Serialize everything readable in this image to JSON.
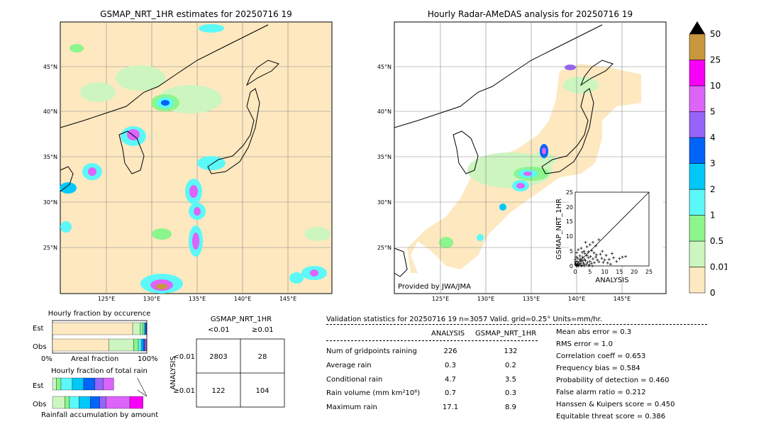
{
  "left_map": {
    "title": "GSMAP_NRT_1HR estimates for 20250716 19"
  },
  "right_map": {
    "title": "Hourly Radar-AMeDAS analysis for 20250716 19",
    "credit": "Provided by JWA/JMA"
  },
  "map_axes": {
    "lat_labels": [
      "45°N",
      "40°N",
      "35°N",
      "30°N",
      "25°N"
    ],
    "lon_labels": [
      "125°E",
      "130°E",
      "135°E",
      "140°E",
      "145°E"
    ]
  },
  "colorbar": {
    "levels": [
      "0",
      "0.01",
      "0.5",
      "1",
      "2",
      "3",
      "4",
      "5",
      "10",
      "25",
      "50"
    ],
    "colors": [
      "#fde8c0",
      "#ccf5c0",
      "#8cf58c",
      "#5cf8f8",
      "#00c8f8",
      "#0064f8",
      "#9664f8",
      "#dc64f8",
      "#f800f8",
      "#c8963c",
      "#000000"
    ]
  },
  "scatter": {
    "xlabel": "ANALYSIS",
    "ylabel": "GSMAP_NRT_1HR",
    "ticks": [
      "0",
      "5",
      "10",
      "15",
      "20",
      "25"
    ]
  },
  "fraction_occurrence": {
    "title": "Hourly fraction by occurence",
    "rows": [
      "Est",
      "Obs"
    ],
    "x0": "0%",
    "xlabel": "Areal fraction",
    "x1": "100%"
  },
  "fraction_total": {
    "title": "Hourly fraction of total rain",
    "rows": [
      "Est",
      "Obs"
    ],
    "xlabel": "Rainfall accumulation by amount"
  },
  "contingency": {
    "title": "GSMAP_NRT_1HR",
    "col_labels": [
      "<0.01",
      "≥0.01"
    ],
    "row_axis": "ANALYSIS",
    "row_labels": [
      "<0.01",
      "≥0.01"
    ],
    "cells": [
      [
        "2803",
        "28"
      ],
      [
        "122",
        "104"
      ]
    ]
  },
  "validation": {
    "header": "Validation statistics for 20250716 19  n=3057 Valid. grid=0.25° Units=mm/hr.",
    "col_analysis": "ANALYSIS",
    "col_gsmap": "GSMAP_NRT_1HR",
    "rows": [
      {
        "label": "Num of gridpoints raining",
        "analysis": "226",
        "gsmap": "132"
      },
      {
        "label": "Average rain",
        "analysis": "0.3",
        "gsmap": "0.2"
      },
      {
        "label": "Conditional rain",
        "analysis": "4.7",
        "gsmap": "3.5"
      },
      {
        "label": "Rain volume (mm km²10⁶)",
        "analysis": "0.7",
        "gsmap": "0.3"
      },
      {
        "label": "Maximum rain",
        "analysis": "17.1",
        "gsmap": "8.9"
      }
    ],
    "scores": [
      "Mean abs error =    0.3",
      "RMS error =    1.0",
      "Correlation coeff =  0.653",
      "Frequency bias =  0.584",
      "Probability of detection =  0.460",
      "False alarm ratio =  0.212",
      "Hanssen & Kuipers score =  0.450",
      "Equitable threat score =  0.386"
    ]
  },
  "chart_data": [
    {
      "type": "scatter",
      "title": "",
      "xlabel": "ANALYSIS",
      "ylabel": "GSMAP_NRT_1HR",
      "xlim": [
        0,
        25
      ],
      "ylim": [
        0,
        25
      ],
      "points": [
        [
          0.3,
          0.2
        ],
        [
          0.5,
          0.1
        ],
        [
          0.8,
          0.4
        ],
        [
          1.0,
          1.2
        ],
        [
          1.2,
          0.3
        ],
        [
          1.5,
          2.0
        ],
        [
          1.8,
          0.8
        ],
        [
          2.0,
          1.5
        ],
        [
          2.2,
          0.2
        ],
        [
          2.5,
          3.0
        ],
        [
          2.8,
          1.0
        ],
        [
          3.0,
          0.5
        ],
        [
          3.2,
          2.2
        ],
        [
          3.5,
          1.8
        ],
        [
          3.8,
          0.6
        ],
        [
          4.0,
          3.5
        ],
        [
          4.2,
          1.2
        ],
        [
          4.5,
          2.8
        ],
        [
          4.8,
          0.4
        ],
        [
          5.0,
          1.6
        ],
        [
          5.2,
          3.2
        ],
        [
          5.5,
          0.9
        ],
        [
          6.0,
          2.4
        ],
        [
          6.5,
          1.1
        ],
        [
          7.0,
          3.0
        ],
        [
          7.5,
          2.0
        ],
        [
          8.0,
          1.4
        ],
        [
          8.5,
          4.0
        ],
        [
          9.0,
          2.6
        ],
        [
          9.5,
          1.2
        ],
        [
          10.0,
          2.0
        ],
        [
          10.5,
          3.6
        ],
        [
          11.0,
          1.0
        ],
        [
          11.5,
          2.2
        ],
        [
          12.0,
          0.6
        ],
        [
          13.0,
          2.8
        ],
        [
          15.0,
          2.5
        ],
        [
          16.0,
          3.0
        ],
        [
          17.1,
          3.2
        ],
        [
          0.5,
          4.5
        ],
        [
          1.0,
          5.5
        ],
        [
          2.0,
          6.0
        ],
        [
          3.0,
          5.0
        ],
        [
          4.0,
          6.5
        ],
        [
          5.0,
          7.2
        ],
        [
          6.0,
          8.0
        ],
        [
          7.0,
          6.8
        ],
        [
          8.0,
          8.9
        ],
        [
          3.5,
          8.0
        ],
        [
          0.2,
          0.8
        ],
        [
          0.6,
          1.6
        ],
        [
          1.3,
          0.6
        ],
        [
          2.6,
          1.8
        ],
        [
          3.3,
          4.2
        ],
        [
          4.4,
          4.8
        ],
        [
          5.6,
          5.2
        ],
        [
          6.4,
          4.4
        ],
        [
          7.2,
          3.8
        ],
        [
          9.2,
          5.0
        ],
        [
          1.6,
          3.4
        ],
        [
          2.4,
          4.6
        ],
        [
          0.9,
          2.6
        ],
        [
          1.9,
          2.4
        ],
        [
          0.4,
          3.0
        ],
        [
          12.5,
          4.2
        ],
        [
          14.0,
          1.5
        ],
        [
          0.7,
          0.0
        ],
        [
          1.1,
          0.0
        ],
        [
          2.1,
          0.0
        ],
        [
          3.1,
          0.0
        ],
        [
          4.6,
          0.0
        ],
        [
          5.8,
          0.0
        ],
        [
          0.0,
          0.6
        ],
        [
          0.0,
          1.4
        ],
        [
          0.0,
          2.2
        ]
      ]
    },
    {
      "type": "bar",
      "title": "Hourly fraction by occurence",
      "xlabel": "Areal fraction",
      "categories": [
        "Est",
        "Obs"
      ],
      "series": [
        {
          "name": "0",
          "values": [
            0.85,
            0.6
          ]
        },
        {
          "name": "0.01",
          "values": [
            0.08,
            0.26
          ]
        },
        {
          "name": "0.5",
          "values": [
            0.03,
            0.05
          ]
        },
        {
          "name": "1",
          "values": [
            0.015,
            0.03
          ]
        },
        {
          "name": "2",
          "values": [
            0.01,
            0.02
          ]
        },
        {
          "name": "3",
          "values": [
            0.008,
            0.015
          ]
        },
        {
          "name": "4",
          "values": [
            0.004,
            0.01
          ]
        },
        {
          "name": "5",
          "values": [
            0.003,
            0.01
          ]
        }
      ]
    },
    {
      "type": "bar",
      "title": "Hourly fraction of total rain",
      "xlabel": "Rainfall accumulation by amount",
      "categories": [
        "Est",
        "Obs"
      ],
      "series": [
        {
          "name": "0.01",
          "values": [
            0.04,
            0.13
          ]
        },
        {
          "name": "0.5",
          "values": [
            0.05,
            0.05
          ]
        },
        {
          "name": "1",
          "values": [
            0.12,
            0.1
          ]
        },
        {
          "name": "2",
          "values": [
            0.12,
            0.12
          ]
        },
        {
          "name": "3",
          "values": [
            0.12,
            0.1
          ]
        },
        {
          "name": "4",
          "values": [
            0.09,
            0.07
          ]
        },
        {
          "name": "5",
          "values": [
            0.11,
            0.25
          ]
        },
        {
          "name": "10",
          "values": [
            0.0,
            0.14
          ]
        }
      ]
    }
  ]
}
